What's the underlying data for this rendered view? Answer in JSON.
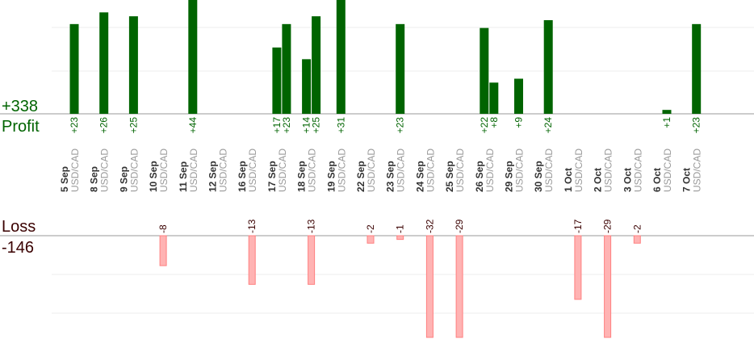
{
  "summary": {
    "profit_total": "+338",
    "profit_label": "Profit",
    "loss_label": "Loss",
    "loss_total": "-146"
  },
  "colors": {
    "profit_bar": "#006400",
    "profit_text": "#006400",
    "loss_bar": "#ffb3b3",
    "loss_stroke": "#ff8080",
    "loss_text": "#3a0000",
    "axis": "#999999",
    "grid": "#eeeeee"
  },
  "chart_data": {
    "type": "bar",
    "profit_scale_max": 30,
    "loss_scale_max": 25,
    "columns": [
      {
        "date": "5 Sep",
        "pair": "USD/CAD",
        "profits": [
          23
        ],
        "losses": []
      },
      {
        "date": "8 Sep",
        "pair": "USD/CAD",
        "profits": [
          26
        ],
        "losses": []
      },
      {
        "date": "9 Sep",
        "pair": "USD/CAD",
        "profits": [
          25
        ],
        "losses": []
      },
      {
        "date": "10 Sep",
        "pair": "USD/CAD",
        "profits": [],
        "losses": [
          -8
        ]
      },
      {
        "date": "11 Sep",
        "pair": "USD/CAD",
        "profits": [
          44
        ],
        "losses": []
      },
      {
        "date": "12 Sep",
        "pair": "USD/CAD",
        "profits": [],
        "losses": []
      },
      {
        "date": "16 Sep",
        "pair": "USD/CAD",
        "profits": [],
        "losses": [
          -13
        ]
      },
      {
        "date": "17 Sep",
        "pair": "USD/CAD",
        "profits": [
          17,
          23
        ],
        "losses": []
      },
      {
        "date": "18 Sep",
        "pair": "USD/CAD",
        "profits": [
          14,
          25
        ],
        "losses": [
          -13
        ]
      },
      {
        "date": "19 Sep",
        "pair": "USD/CAD",
        "profits": [
          31
        ],
        "losses": []
      },
      {
        "date": "22 Sep",
        "pair": "USD/CAD",
        "profits": [],
        "losses": [
          -2
        ]
      },
      {
        "date": "23 Sep",
        "pair": "USD/CAD",
        "profits": [
          23
        ],
        "losses": [
          -1
        ]
      },
      {
        "date": "24 Sep",
        "pair": "USD/CAD",
        "profits": [],
        "losses": [
          -32
        ]
      },
      {
        "date": "25 Sep",
        "pair": "USD/CAD",
        "profits": [],
        "losses": [
          -29
        ]
      },
      {
        "date": "26 Sep",
        "pair": "USD/CAD",
        "profits": [
          22,
          8
        ],
        "losses": []
      },
      {
        "date": "29 Sep",
        "pair": "USD/CAD",
        "profits": [
          9
        ],
        "losses": []
      },
      {
        "date": "30 Sep",
        "pair": "USD/CAD",
        "profits": [
          24
        ],
        "losses": []
      },
      {
        "date": "1 Oct",
        "pair": "USD/CAD",
        "profits": [],
        "losses": [
          -17
        ]
      },
      {
        "date": "2 Oct",
        "pair": "USD/CAD",
        "profits": [],
        "losses": [
          -29
        ]
      },
      {
        "date": "3 Oct",
        "pair": "USD/CAD",
        "profits": [],
        "losses": [
          -2
        ]
      },
      {
        "date": "6 Oct",
        "pair": "USD/CAD",
        "profits": [
          1
        ],
        "losses": []
      },
      {
        "date": "7 Oct",
        "pair": "USD/CAD",
        "profits": [
          23
        ],
        "losses": []
      }
    ]
  }
}
